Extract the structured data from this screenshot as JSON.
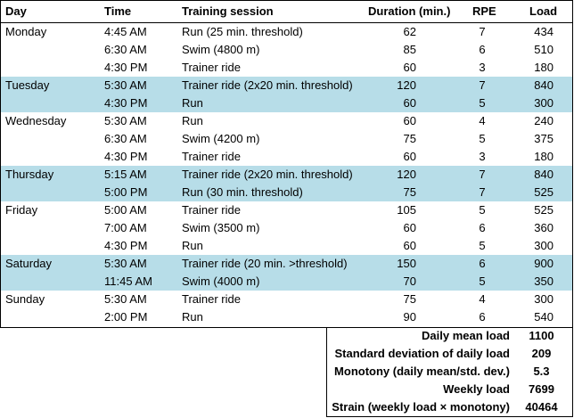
{
  "header": [
    "Day",
    "Time",
    "Training session",
    "Duration (min.)",
    "RPE",
    "Load"
  ],
  "days": [
    {
      "day": "Monday",
      "sessions": [
        {
          "time": "4:45 AM",
          "session": "Run (25 min. threshold)",
          "duration": 62,
          "rpe": 7,
          "load": 434
        },
        {
          "time": "6:30 AM",
          "session": "Swim (4800 m)",
          "duration": 85,
          "rpe": 6,
          "load": 510
        },
        {
          "time": "4:30 PM",
          "session": "Trainer ride",
          "duration": 60,
          "rpe": 3,
          "load": 180
        }
      ]
    },
    {
      "day": "Tuesday",
      "sessions": [
        {
          "time": "5:30 AM",
          "session": "Trainer ride (2x20 min. threshold)",
          "duration": 120,
          "rpe": 7,
          "load": 840
        },
        {
          "time": "4:30 PM",
          "session": "Run",
          "duration": 60,
          "rpe": 5,
          "load": 300
        }
      ]
    },
    {
      "day": "Wednesday",
      "sessions": [
        {
          "time": "5:30 AM",
          "session": "Run",
          "duration": 60,
          "rpe": 4,
          "load": 240
        },
        {
          "time": "6:30 AM",
          "session": "Swim (4200 m)",
          "duration": 75,
          "rpe": 5,
          "load": 375
        },
        {
          "time": "4:30 PM",
          "session": "Trainer ride",
          "duration": 60,
          "rpe": 3,
          "load": 180
        }
      ]
    },
    {
      "day": "Thursday",
      "sessions": [
        {
          "time": "5:15 AM",
          "session": "Trainer ride (2x20 min. threshold)",
          "duration": 120,
          "rpe": 7,
          "load": 840
        },
        {
          "time": "5:00 PM",
          "session": "Run (30 min. threshold)",
          "duration": 75,
          "rpe": 7,
          "load": 525
        }
      ]
    },
    {
      "day": "Friday",
      "sessions": [
        {
          "time": "5:00 AM",
          "session": "Trainer ride",
          "duration": 105,
          "rpe": 5,
          "load": 525
        },
        {
          "time": "7:00 AM",
          "session": "Swim (3500 m)",
          "duration": 60,
          "rpe": 6,
          "load": 360
        },
        {
          "time": "4:30 PM",
          "session": "Run",
          "duration": 60,
          "rpe": 5,
          "load": 300
        }
      ]
    },
    {
      "day": "Saturday",
      "sessions": [
        {
          "time": "5:30 AM",
          "session": "Trainer ride (20 min. >threshold)",
          "duration": 150,
          "rpe": 6,
          "load": 900
        },
        {
          "time": "11:45 AM",
          "session": "Swim (4000 m)",
          "duration": 70,
          "rpe": 5,
          "load": 350
        }
      ]
    },
    {
      "day": "Sunday",
      "sessions": [
        {
          "time": "5:30 AM",
          "session": "Trainer ride",
          "duration": 75,
          "rpe": 4,
          "load": 300
        },
        {
          "time": "2:00 PM",
          "session": "Run",
          "duration": 90,
          "rpe": 6,
          "load": 540
        }
      ]
    }
  ],
  "summary": [
    {
      "label": "Daily mean load",
      "value": 1100
    },
    {
      "label": "Standard deviation of daily load",
      "value": 209
    },
    {
      "label": "Monotony (daily mean/std. dev.)",
      "value": 5.3
    },
    {
      "label": "Weekly load",
      "value": 7699
    },
    {
      "label": "Strain (weekly load × monotony)",
      "value": 40464
    }
  ]
}
